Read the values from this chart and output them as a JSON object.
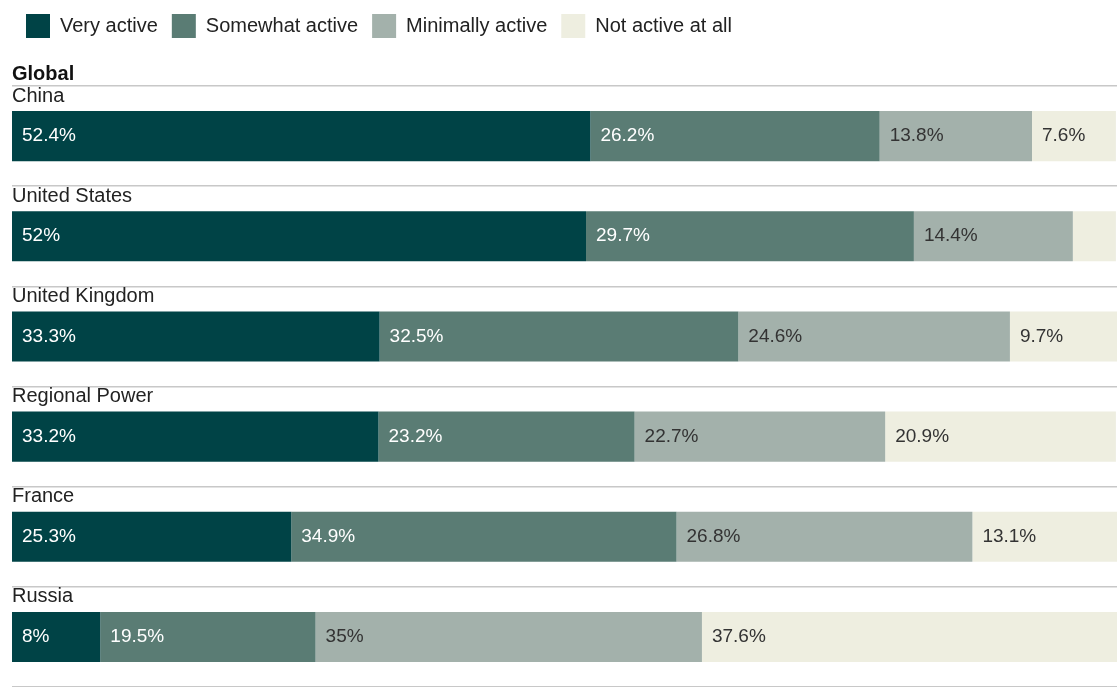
{
  "chart_data": {
    "type": "bar",
    "orientation": "horizontal",
    "stacked": true,
    "subtitle": "Global",
    "categories": [
      "China",
      "United States",
      "United Kingdom",
      "Regional Power",
      "France",
      "Russia"
    ],
    "series": [
      {
        "name": "Very active",
        "color": "#004346",
        "values": [
          52.4,
          52,
          33.3,
          33.2,
          25.3,
          8
        ],
        "value_labels": [
          "52.4%",
          "52%",
          "33.3%",
          "33.2%",
          "25.3%",
          "8%"
        ]
      },
      {
        "name": "Somewhat active",
        "color": "#5a7c74",
        "values": [
          26.2,
          29.7,
          32.5,
          23.2,
          34.9,
          19.5
        ],
        "value_labels": [
          "26.2%",
          "29.7%",
          "32.5%",
          "23.2%",
          "34.9%",
          "19.5%"
        ]
      },
      {
        "name": "Minimally active",
        "color": "#a3b1ab",
        "values": [
          13.8,
          14.4,
          24.6,
          22.7,
          26.8,
          35
        ],
        "value_labels": [
          "13.8%",
          "14.4%",
          "24.6%",
          "22.7%",
          "26.8%",
          "35%"
        ]
      },
      {
        "name": "Not active at all",
        "color": "#eeeee0",
        "values": [
          7.6,
          3.9,
          9.7,
          20.9,
          13.1,
          37.6
        ],
        "value_labels": [
          "7.6%",
          null,
          "9.7%",
          "20.9%",
          "13.1%",
          "37.6%"
        ]
      }
    ],
    "xlim": [
      0,
      100.1
    ],
    "tick_labels": "y",
    "grid": "y",
    "legend": "top left"
  }
}
